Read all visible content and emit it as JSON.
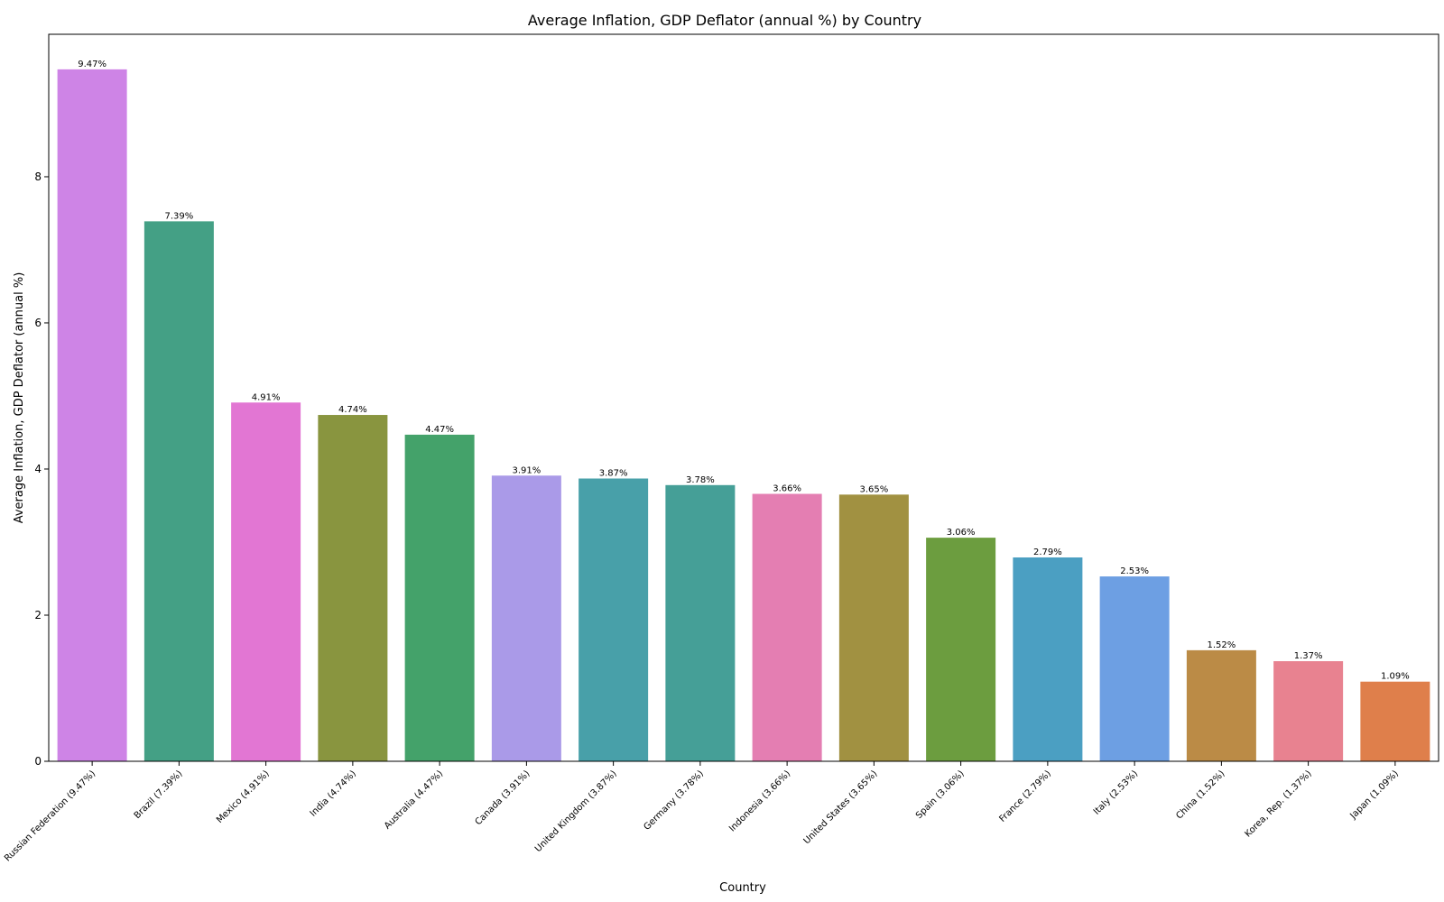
{
  "chart_data": {
    "type": "bar",
    "title": "Average Inflation, GDP Deflator (annual %) by Country",
    "xlabel": "Country",
    "ylabel": "Average Inflation, GDP Deflator (annual %)",
    "ylim": [
      0,
      9.95
    ],
    "yticks": [
      "0",
      "2",
      "4",
      "6",
      "8"
    ],
    "categories": [
      "Russian Federation (9.47%)",
      "Brazil (7.39%)",
      "Mexico (4.91%)",
      "India (4.74%)",
      "Australia (4.47%)",
      "Canada (3.91%)",
      "United Kingdom (3.87%)",
      "Germany (3.78%)",
      "Indonesia (3.66%)",
      "United States (3.65%)",
      "Spain (3.06%)",
      "France (2.79%)",
      "Italy (2.53%)",
      "China (1.52%)",
      "Korea, Rep. (1.37%)",
      "Japan (1.09%)"
    ],
    "values": [
      9.47,
      7.39,
      4.91,
      4.74,
      4.47,
      3.91,
      3.87,
      3.78,
      3.66,
      3.65,
      3.06,
      2.79,
      2.53,
      1.52,
      1.37,
      1.09
    ],
    "data_labels": [
      "9.47%",
      "7.39%",
      "4.91%",
      "4.74%",
      "4.47%",
      "3.91%",
      "3.87%",
      "3.78%",
      "3.66%",
      "3.65%",
      "3.06%",
      "2.79%",
      "2.53%",
      "1.52%",
      "1.37%",
      "1.09%"
    ],
    "colors": [
      "#ce84e6",
      "#44a085",
      "#e276d3",
      "#89953f",
      "#44a26a",
      "#aa9ae8",
      "#48a0a9",
      "#459f97",
      "#e47eb2",
      "#a19141",
      "#6c9d3f",
      "#4b9fc2",
      "#6d9fe3",
      "#bb8b46",
      "#e88290",
      "#df7f4b"
    ],
    "grid": false,
    "legend": "none"
  }
}
